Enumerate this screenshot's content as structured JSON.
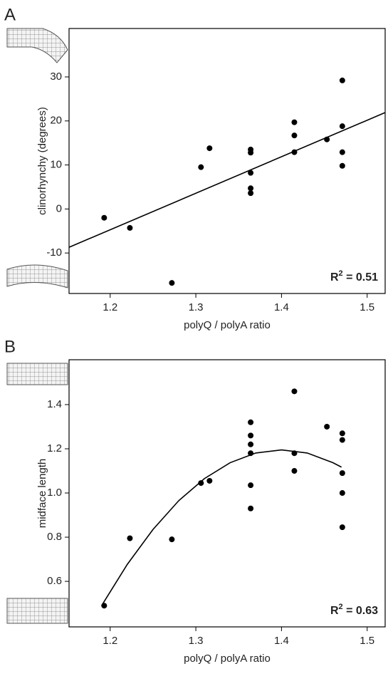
{
  "chart_data": [
    {
      "type": "scatter",
      "panel_label": "A",
      "xlabel": "polyQ / polyA ratio",
      "ylabel": "clinorhynchy (degrees)",
      "annotation": {
        "text": "R",
        "sup": "2",
        "rest": " = 0.51"
      },
      "color": "#000000",
      "x": [
        1.193,
        1.223,
        1.272,
        1.306,
        1.316,
        1.364,
        1.364,
        1.364,
        1.364,
        1.364,
        1.415,
        1.415,
        1.415,
        1.453,
        1.471,
        1.471,
        1.471,
        1.471
      ],
      "values": [
        -2,
        -4.3,
        -16.8,
        9.5,
        13.8,
        13.5,
        12.8,
        8.2,
        4.7,
        3.6,
        19.7,
        16.7,
        12.9,
        15.8,
        29.2,
        18.8,
        12.9,
        9.8
      ],
      "fit": {
        "x": [
          1.152,
          1.521
        ],
        "values": [
          -8.7,
          21.9
        ]
      },
      "xlim": [
        1.152,
        1.521
      ],
      "xticks": [
        1.2,
        1.3,
        1.4,
        1.5
      ],
      "ylim": [
        -19.2,
        41
      ],
      "yticks": [
        -10,
        0,
        10,
        20,
        30
      ]
    },
    {
      "type": "scatter",
      "panel_label": "B",
      "xlabel": "polyQ / polyA ratio",
      "ylabel": "midface length",
      "annotation": {
        "text": "R",
        "sup": "2",
        "rest": " = 0.63"
      },
      "color": "#000000",
      "x": [
        1.193,
        1.223,
        1.272,
        1.306,
        1.316,
        1.364,
        1.364,
        1.364,
        1.364,
        1.364,
        1.364,
        1.415,
        1.415,
        1.415,
        1.453,
        1.471,
        1.471,
        1.471,
        1.471,
        1.471
      ],
      "values": [
        0.49,
        0.795,
        0.79,
        1.045,
        1.055,
        1.32,
        1.26,
        1.22,
        1.18,
        1.035,
        0.93,
        1.46,
        1.18,
        1.1,
        1.3,
        1.27,
        1.24,
        1.09,
        1.0,
        0.845
      ],
      "fit": {
        "x": [
          1.19,
          1.22,
          1.25,
          1.28,
          1.31,
          1.34,
          1.37,
          1.4,
          1.43,
          1.46,
          1.47
        ],
        "values": [
          0.49,
          0.677,
          0.835,
          0.965,
          1.065,
          1.137,
          1.181,
          1.195,
          1.181,
          1.137,
          1.117
        ]
      },
      "xlim": [
        1.152,
        1.521
      ],
      "xticks": [
        1.2,
        1.3,
        1.4,
        1.5
      ],
      "ylim": [
        0.394,
        1.603
      ],
      "yticks": [
        0.6,
        0.8,
        {
          "value": 1,
          "label": "1.0"
        },
        1.2,
        1.4
      ]
    }
  ]
}
